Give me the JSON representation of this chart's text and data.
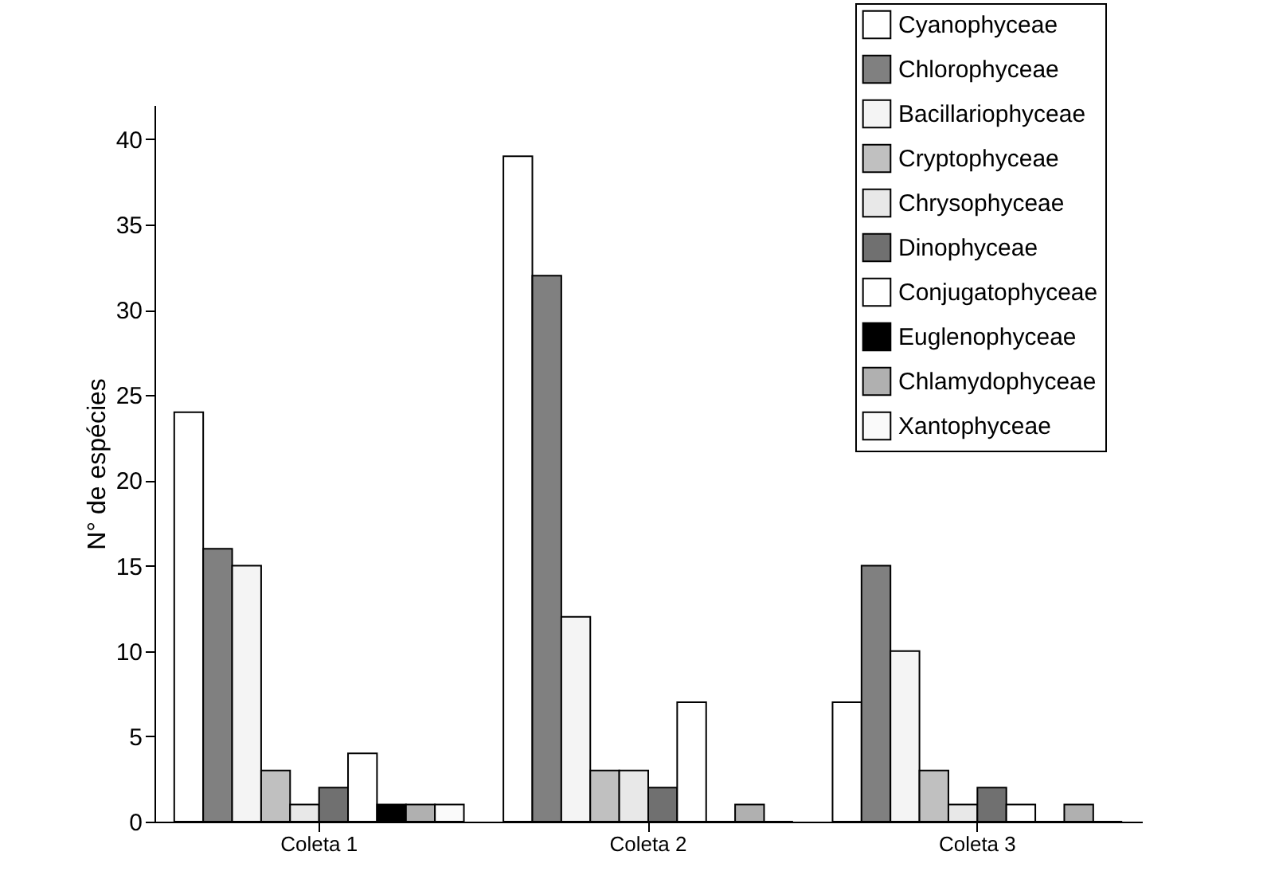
{
  "chart_data": {
    "type": "bar",
    "ylabel": "N° de espécies",
    "categories": [
      "Coleta 1",
      "Coleta 2",
      "Coleta 3"
    ],
    "series": [
      {
        "name": "Cyanophyceae",
        "color": "#ffffff",
        "values": [
          24,
          39,
          7
        ]
      },
      {
        "name": "Chlorophyceae",
        "color": "#808080",
        "values": [
          16,
          32,
          15
        ]
      },
      {
        "name": "Bacillariophyceae",
        "color": "#f4f4f4",
        "values": [
          15,
          12,
          10
        ]
      },
      {
        "name": "Cryptophyceae",
        "color": "#c0c0c0",
        "values": [
          3,
          3,
          3
        ]
      },
      {
        "name": "Chrysophyceae",
        "color": "#e8e8e8",
        "values": [
          1,
          3,
          1
        ]
      },
      {
        "name": "Dinophyceae",
        "color": "#707070",
        "values": [
          2,
          2,
          2
        ]
      },
      {
        "name": "Conjugatophyceae",
        "color": "#ffffff",
        "values": [
          4,
          7,
          1
        ]
      },
      {
        "name": "Euglenophyceae",
        "color": "#000000",
        "values": [
          1,
          0,
          0
        ]
      },
      {
        "name": "Chlamydophyceae",
        "color": "#b0b0b0",
        "values": [
          1,
          1,
          1
        ]
      },
      {
        "name": "Xantophyceae",
        "color": "#fafafa",
        "values": [
          1,
          0,
          0
        ]
      }
    ],
    "ylim": [
      0,
      42
    ],
    "yticks": [
      0,
      5,
      10,
      15,
      20,
      25,
      30,
      35,
      40
    ],
    "grid": false,
    "legend": "top right"
  }
}
